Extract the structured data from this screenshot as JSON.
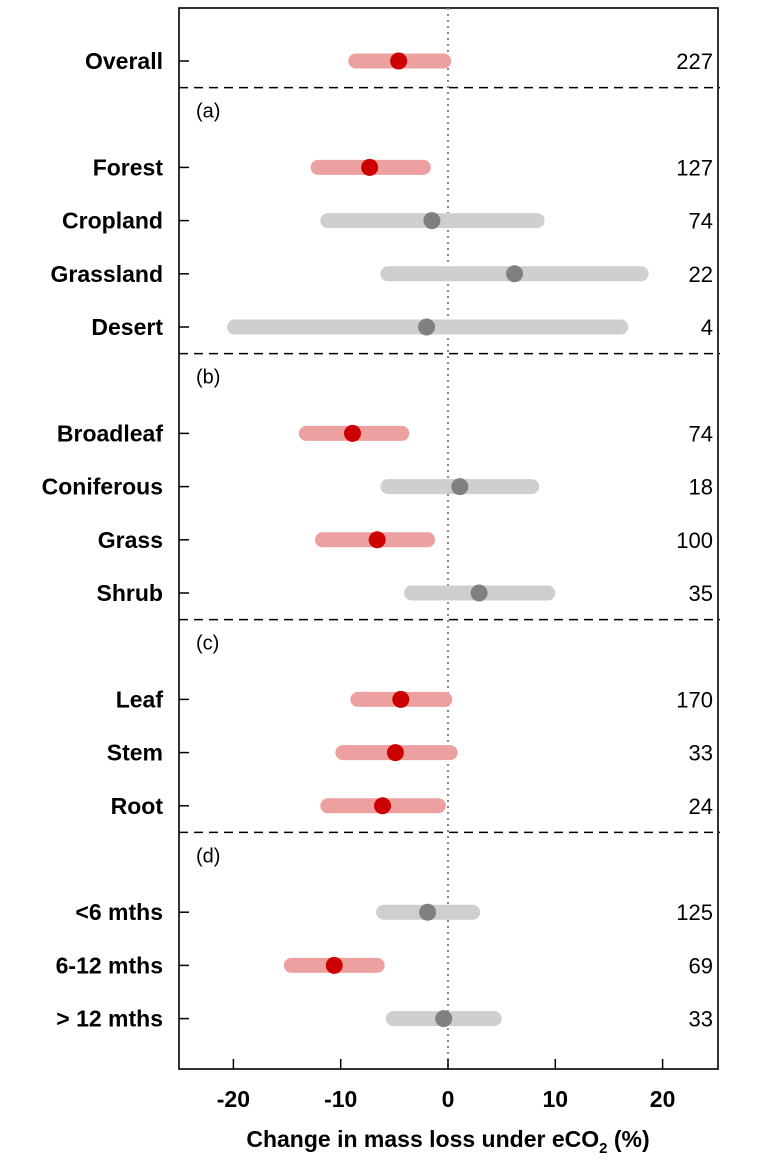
{
  "chart_data": {
    "type": "forest-plot",
    "xlabel": "Change in mass loss under eCO",
    "xlabel_sub": "2",
    "xlabel_suffix": " (%)",
    "xlim": [
      -25,
      25
    ],
    "xticks": [
      -20,
      -10,
      0,
      10,
      20
    ],
    "xtick_labels": [
      "-20",
      "-10",
      "0",
      "10",
      "20"
    ],
    "reference_line": 0,
    "colors": {
      "significant_bar": "#eca0a0",
      "significant_point": "#cc0000",
      "nonsignificant_bar": "#cfcfcf",
      "nonsignificant_point": "#808080"
    },
    "groups": [
      {
        "panel": "",
        "rows": [
          {
            "label": "Overall",
            "mean": -4.6,
            "low": -8.6,
            "high": -0.4,
            "n": "227",
            "significant": true
          }
        ]
      },
      {
        "panel": "(a)",
        "rows": [
          {
            "label": "Forest",
            "mean": -7.3,
            "low": -12.1,
            "high": -2.3,
            "n": "127",
            "significant": true
          },
          {
            "label": "Cropland",
            "mean": -1.5,
            "low": -11.2,
            "high": 8.3,
            "n": "74",
            "significant": false
          },
          {
            "label": "Grassland",
            "mean": 6.2,
            "low": -5.6,
            "high": 18.0,
            "n": "22",
            "significant": false
          },
          {
            "label": "Desert",
            "mean": -2.0,
            "low": -19.9,
            "high": 16.1,
            "n": "4",
            "significant": false
          }
        ]
      },
      {
        "panel": "(b)",
        "rows": [
          {
            "label": "Broadleaf",
            "mean": -8.9,
            "low": -13.2,
            "high": -4.3,
            "n": "74",
            "significant": true
          },
          {
            "label": "Coniferous",
            "mean": 1.1,
            "low": -5.6,
            "high": 7.8,
            "n": "18",
            "significant": false
          },
          {
            "label": "Grass",
            "mean": -6.6,
            "low": -11.7,
            "high": -1.9,
            "n": "100",
            "significant": true
          },
          {
            "label": "Shrub",
            "mean": 2.9,
            "low": -3.4,
            "high": 9.3,
            "n": "35",
            "significant": false
          }
        ]
      },
      {
        "panel": "(c)",
        "rows": [
          {
            "label": "Leaf",
            "mean": -4.4,
            "low": -8.4,
            "high": -0.3,
            "n": "170",
            "significant": true
          },
          {
            "label": "Stem",
            "mean": -4.9,
            "low": -9.8,
            "high": 0.2,
            "n": "33",
            "significant": true
          },
          {
            "label": "Root",
            "mean": -6.1,
            "low": -11.2,
            "high": -0.9,
            "n": "24",
            "significant": true
          }
        ]
      },
      {
        "panel": "(d)",
        "rows": [
          {
            "label": "<6 mths",
            "mean": -1.9,
            "low": -6.0,
            "high": 2.3,
            "n": "125",
            "significant": false
          },
          {
            "label": "6-12 mths",
            "mean": -10.6,
            "low": -14.6,
            "high": -6.6,
            "n": "69",
            "significant": true
          },
          {
            "label": "> 12 mths",
            "mean": -0.4,
            "low": -5.1,
            "high": 4.3,
            "n": "33",
            "significant": false
          }
        ]
      }
    ]
  }
}
